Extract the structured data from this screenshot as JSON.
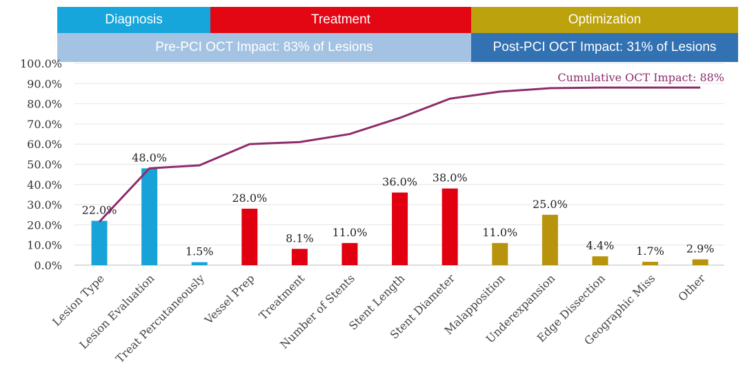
{
  "header": {
    "phases": [
      {
        "label": "Diagnosis",
        "color": "#16a6dc"
      },
      {
        "label": "Treatment",
        "color": "#e30613"
      },
      {
        "label": "Optimization",
        "color": "#bca20c"
      }
    ],
    "impacts": [
      {
        "label": "Pre-PCI OCT Impact: 83% of Lesions",
        "color": "#a4c3e3"
      },
      {
        "label": "Post-PCI OCT Impact: 31% of Lesions",
        "color": "#3272b3"
      }
    ]
  },
  "chart_data": {
    "type": "bar",
    "categories": [
      "Lesion Type",
      "Lesion Evaluation",
      "Treat Percutaneously",
      "Vessel Prep",
      "Treatment",
      "Number of Stents",
      "Stent Length",
      "Stent Diameter",
      "Malapposition",
      "Underexpansion",
      "Edge Dissection",
      "Geographic Miss",
      "Other"
    ],
    "values": [
      22.0,
      48.0,
      1.5,
      28.0,
      8.1,
      11.0,
      36.0,
      38.0,
      11.0,
      25.0,
      4.4,
      1.7,
      2.9
    ],
    "data_labels": [
      "22.0%",
      "48.0%",
      "1.5%",
      "28.0%",
      "8.1%",
      "11.0%",
      "36.0%",
      "38.0%",
      "11.0%",
      "25.0%",
      "4.4%",
      "1.7%",
      "2.9%"
    ],
    "bar_colors": [
      "#17a3d8",
      "#17a3d8",
      "#17a3d8",
      "#e00010",
      "#e00010",
      "#e00010",
      "#e00010",
      "#e00010",
      "#b8940c",
      "#b8940c",
      "#b8940c",
      "#b8940c",
      "#b8940c"
    ],
    "cumulative_line": {
      "values": [
        21.5,
        48.0,
        49.5,
        60.0,
        61.0,
        65.0,
        73.0,
        82.5,
        86.0,
        87.7,
        88.0,
        88.0,
        88.0
      ],
      "color": "#8e2a6b",
      "annotation": "Cumulative OCT Impact: 88%"
    },
    "ylim": [
      0,
      100
    ],
    "yticks": [
      "0.0%",
      "10.0%",
      "20.0%",
      "30.0%",
      "40.0%",
      "50.0%",
      "60.0%",
      "70.0%",
      "80.0%",
      "90.0%",
      "100.0%"
    ],
    "grid": true,
    "xlabel": "",
    "ylabel": ""
  }
}
